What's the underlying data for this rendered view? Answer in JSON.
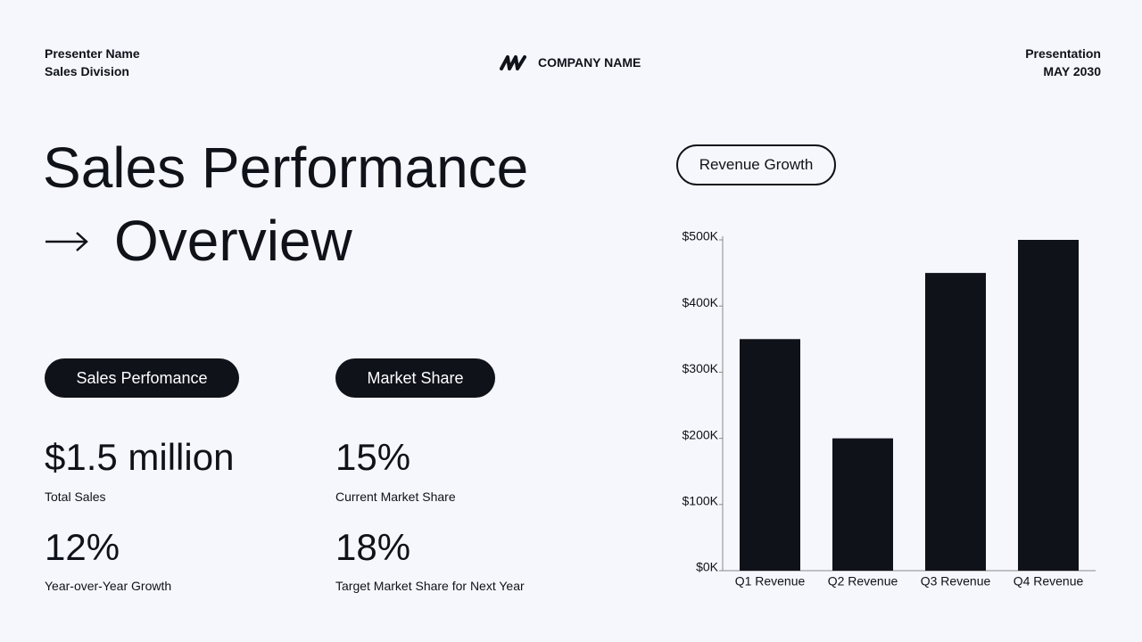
{
  "header": {
    "presenter": "Presenter Name",
    "division": "Sales Division",
    "company": "COMPANY NAME",
    "label": "Presentation",
    "date": "MAY 2030"
  },
  "title": {
    "line1": "Sales Performance",
    "line2": "Overview"
  },
  "sections": [
    {
      "pill": "Sales Perfomance",
      "stats": [
        {
          "value": "$1.5 million",
          "label": "Total Sales"
        },
        {
          "value": "12%",
          "label": "Year-over-Year Growth"
        }
      ]
    },
    {
      "pill": "Market Share",
      "stats": [
        {
          "value": "15%",
          "label": "Current Market Share"
        },
        {
          "value": "18%",
          "label": "Target Market Share for Next Year"
        }
      ]
    }
  ],
  "chart_data": {
    "type": "bar",
    "title": "Revenue Growth",
    "categories": [
      "Q1 Revenue",
      "Q2 Revenue",
      "Q3 Revenue",
      "Q4 Revenue"
    ],
    "values": [
      350000,
      200000,
      450000,
      500000
    ],
    "color": "#10121a",
    "ylim": [
      0,
      500000
    ],
    "yticks": [
      {
        "value": 0,
        "label": "$0K"
      },
      {
        "value": 100000,
        "label": "$100K"
      },
      {
        "value": 200000,
        "label": "$200K"
      },
      {
        "value": 300000,
        "label": "$300K"
      },
      {
        "value": 400000,
        "label": "$400K"
      },
      {
        "value": 500000,
        "label": "$500K"
      }
    ],
    "grid": false
  }
}
